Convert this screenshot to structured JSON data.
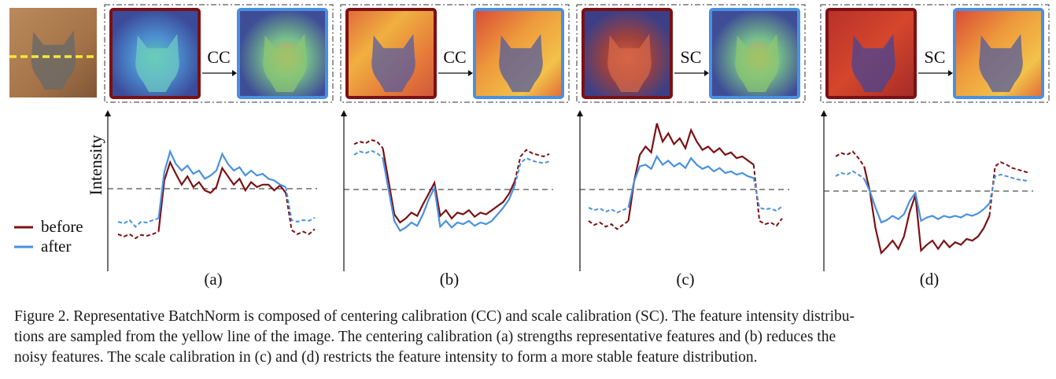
{
  "figure": {
    "number": "Figure 2.",
    "caption_lines": [
      "Representative BatchNorm is composed of centering calibration (CC) and scale calibration (SC). The feature intensity distribu-",
      "tions are sampled from the yellow line of the image.  The centering calibration (a) strengths representative features and (b) reduces the",
      "noisy features. The scale calibration in (c) and (d) restricts the feature intensity to form a more stable feature distribution."
    ]
  },
  "input_image": {
    "description_icon": "cat-photo-icon",
    "sample_line_color": "#f5e83a"
  },
  "legend": {
    "items": [
      {
        "label": "before",
        "color": "#7b1113"
      },
      {
        "label": "after",
        "color": "#4a90e2"
      }
    ]
  },
  "y_axis_label": "Intensity",
  "colors": {
    "before": "#7b1113",
    "after": "#4a90e2",
    "panel_border_before": "#7b1113",
    "panel_border_after": "#4a90e2"
  },
  "panels": [
    {
      "id": "a",
      "label": "(a)",
      "operation": "CC",
      "heatmap_before": "cool",
      "heatmap_after": "warm-cat"
    },
    {
      "id": "b",
      "label": "(b)",
      "operation": "CC",
      "heatmap_before": "warm-bg",
      "heatmap_after": "warm-bg-strong"
    },
    {
      "id": "c",
      "label": "(c)",
      "operation": "SC",
      "heatmap_before": "red-cat",
      "heatmap_after": "warm-cat"
    },
    {
      "id": "d",
      "label": "(d)",
      "operation": "SC",
      "heatmap_before": "red-bg",
      "heatmap_after": "warm-bg-strong"
    }
  ],
  "chart_data": [
    {
      "type": "line",
      "panel": "(a)",
      "title": "",
      "xlabel": "",
      "ylabel": "Intensity",
      "ylim": [
        -1,
        1
      ],
      "baseline": 0,
      "dashed_segments": [
        [
          0,
          7
        ],
        [
          29,
          34
        ]
      ],
      "series": [
        {
          "name": "before",
          "values": [
            -0.55,
            -0.58,
            -0.55,
            -0.6,
            -0.56,
            -0.57,
            -0.55,
            -0.52,
            0.1,
            0.32,
            0.18,
            0.05,
            0.15,
            0.02,
            0.08,
            -0.02,
            -0.05,
            0.02,
            0.25,
            0.15,
            0.05,
            0.12,
            -0.02,
            0.08,
            0.02,
            0.05,
            0.05,
            -0.02,
            0.04,
            -0.05,
            -0.5,
            -0.55,
            -0.52,
            -0.55,
            -0.49
          ]
        },
        {
          "name": "after",
          "values": [
            -0.4,
            -0.42,
            -0.38,
            -0.46,
            -0.4,
            -0.41,
            -0.38,
            -0.36,
            0.2,
            0.45,
            0.3,
            0.22,
            0.28,
            0.18,
            0.22,
            0.12,
            0.16,
            0.22,
            0.42,
            0.3,
            0.22,
            0.26,
            0.16,
            0.22,
            0.16,
            0.18,
            0.12,
            0.1,
            0.05,
            0.02,
            -0.38,
            -0.4,
            -0.38,
            -0.39,
            -0.35
          ]
        }
      ]
    },
    {
      "type": "line",
      "panel": "(b)",
      "title": "",
      "xlabel": "",
      "ylabel": "",
      "ylim": [
        -1,
        1
      ],
      "baseline": 0,
      "dashed_segments": [
        [
          0,
          5
        ],
        [
          28,
          34
        ]
      ],
      "series": [
        {
          "name": "before",
          "values": [
            0.55,
            0.58,
            0.56,
            0.6,
            0.58,
            0.5,
            0.1,
            -0.3,
            -0.4,
            -0.35,
            -0.28,
            -0.32,
            -0.18,
            -0.05,
            0.08,
            -0.32,
            -0.25,
            -0.35,
            -0.28,
            -0.3,
            -0.25,
            -0.33,
            -0.28,
            -0.3,
            -0.25,
            -0.2,
            -0.15,
            -0.05,
            0.1,
            0.4,
            0.48,
            0.44,
            0.42,
            0.4,
            0.43
          ]
        },
        {
          "name": "after",
          "values": [
            0.42,
            0.46,
            0.44,
            0.47,
            0.44,
            0.38,
            0.0,
            -0.38,
            -0.5,
            -0.46,
            -0.4,
            -0.44,
            -0.3,
            -0.12,
            0.02,
            -0.45,
            -0.38,
            -0.46,
            -0.4,
            -0.42,
            -0.38,
            -0.44,
            -0.4,
            -0.42,
            -0.38,
            -0.3,
            -0.22,
            -0.12,
            0.05,
            0.32,
            0.38,
            0.35,
            0.33,
            0.32,
            0.34
          ]
        }
      ]
    },
    {
      "type": "line",
      "panel": "(c)",
      "title": "",
      "xlabel": "",
      "ylabel": "",
      "ylim": [
        -1,
        1
      ],
      "baseline": 0,
      "dashed_segments": [
        [
          0,
          7
        ],
        [
          29,
          34
        ]
      ],
      "series": [
        {
          "name": "before",
          "values": [
            -0.38,
            -0.43,
            -0.4,
            -0.45,
            -0.42,
            -0.48,
            -0.43,
            -0.38,
            0.1,
            0.42,
            0.52,
            0.45,
            0.8,
            0.58,
            0.68,
            0.55,
            0.62,
            0.5,
            0.72,
            0.58,
            0.48,
            0.52,
            0.45,
            0.5,
            0.42,
            0.45,
            0.38,
            0.4,
            0.35,
            0.3,
            -0.38,
            -0.42,
            -0.4,
            -0.44,
            -0.35
          ]
        },
        {
          "name": "after",
          "values": [
            -0.22,
            -0.25,
            -0.23,
            -0.27,
            -0.24,
            -0.28,
            -0.25,
            -0.22,
            0.1,
            0.28,
            0.3,
            0.25,
            0.4,
            0.3,
            0.35,
            0.28,
            0.32,
            0.26,
            0.38,
            0.3,
            0.25,
            0.28,
            0.22,
            0.26,
            0.2,
            0.22,
            0.18,
            0.2,
            0.16,
            0.14,
            -0.22,
            -0.24,
            -0.23,
            -0.26,
            -0.2
          ]
        }
      ]
    },
    {
      "type": "line",
      "panel": "(d)",
      "title": "",
      "xlabel": "",
      "ylabel": "",
      "ylim": [
        -1,
        1
      ],
      "baseline": 0,
      "dashed_segments": [
        [
          0,
          5
        ],
        [
          27,
          34
        ]
      ],
      "series": [
        {
          "name": "before",
          "values": [
            0.42,
            0.46,
            0.44,
            0.48,
            0.4,
            0.3,
            0.0,
            -0.45,
            -0.75,
            -0.68,
            -0.6,
            -0.7,
            -0.55,
            -0.25,
            -0.05,
            -0.72,
            -0.65,
            -0.6,
            -0.7,
            -0.6,
            -0.68,
            -0.62,
            -0.65,
            -0.58,
            -0.6,
            -0.55,
            -0.45,
            -0.3,
            0.3,
            0.35,
            0.32,
            0.28,
            0.26,
            0.24,
            0.22
          ]
        },
        {
          "name": "after",
          "values": [
            0.18,
            0.22,
            0.2,
            0.24,
            0.2,
            0.15,
            0.0,
            -0.2,
            -0.38,
            -0.35,
            -0.3,
            -0.34,
            -0.28,
            -0.12,
            -0.02,
            -0.36,
            -0.32,
            -0.3,
            -0.34,
            -0.3,
            -0.32,
            -0.3,
            -0.32,
            -0.28,
            -0.3,
            -0.27,
            -0.22,
            -0.15,
            0.18,
            0.2,
            0.18,
            0.16,
            0.14,
            0.13,
            0.12
          ]
        }
      ]
    }
  ]
}
